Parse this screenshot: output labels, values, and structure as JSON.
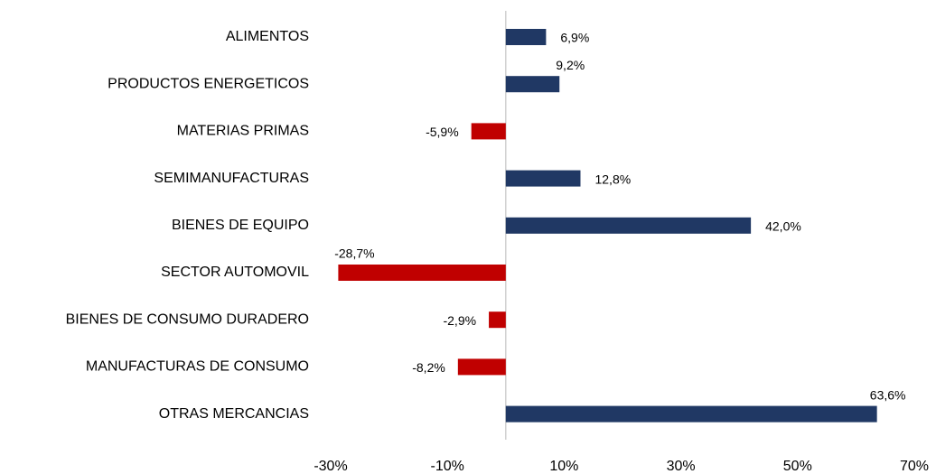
{
  "chart_data": {
    "type": "barh",
    "categories": [
      "ALIMENTOS",
      "PRODUCTOS ENERGETICOS",
      "MATERIAS PRIMAS",
      "SEMIMANUFACTURAS",
      "BIENES DE EQUIPO",
      "SECTOR AUTOMOVIL",
      "BIENES DE CONSUMO DURADERO",
      "MANUFACTURAS DE CONSUMO",
      "OTRAS MERCANCIAS"
    ],
    "values": [
      6.9,
      9.2,
      -5.9,
      12.8,
      42.0,
      -28.7,
      -2.9,
      -8.2,
      63.6
    ],
    "value_labels": [
      "6,9%",
      "9,2%",
      "-5,9%",
      "12,8%",
      "42,0%",
      "-28,7%",
      "-2,9%",
      "-8,2%",
      "63,6%"
    ],
    "colors": [
      "#203864",
      "#203864",
      "#c00000",
      "#203864",
      "#203864",
      "#c00000",
      "#c00000",
      "#c00000",
      "#203864"
    ],
    "xlim": [
      -30,
      70
    ],
    "xticks": [
      {
        "value": -30,
        "label": "-30%"
      },
      {
        "value": -10,
        "label": "-10%"
      },
      {
        "value": 10,
        "label": "10%"
      },
      {
        "value": 30,
        "label": "30%"
      },
      {
        "value": 50,
        "label": "50%"
      },
      {
        "value": 70,
        "label": "70%"
      }
    ]
  }
}
